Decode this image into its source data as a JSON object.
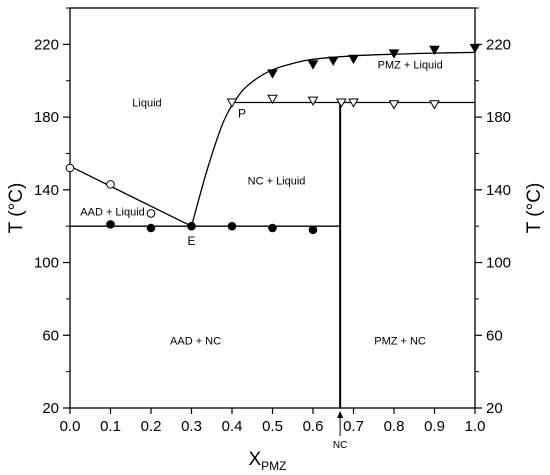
{
  "chart_data": {
    "type": "scatter",
    "xlabel": "X",
    "xlabel_sub": "PMZ",
    "ylabel_left": "T (°C)",
    "ylabel_right": "T (°C)",
    "xlim": [
      0.0,
      1.0
    ],
    "ylim": [
      20,
      240
    ],
    "x_ticks": [
      {
        "value": 0.0,
        "label": "0.0"
      },
      {
        "value": 0.1,
        "label": "0.1"
      },
      {
        "value": 0.2,
        "label": "0.2"
      },
      {
        "value": 0.3,
        "label": "0.3"
      },
      {
        "value": 0.4,
        "label": "0.4"
      },
      {
        "value": 0.5,
        "label": "0.5"
      },
      {
        "value": 0.6,
        "label": "0.6"
      },
      {
        "value": 0.7,
        "label": "0.7"
      },
      {
        "value": 0.8,
        "label": "0.8"
      },
      {
        "value": 0.9,
        "label": "0.9"
      },
      {
        "value": 1.0,
        "label": "1.0"
      }
    ],
    "y_ticks": [
      {
        "value": 20,
        "label": "20"
      },
      {
        "value": 60,
        "label": "60"
      },
      {
        "value": 100,
        "label": "100"
      },
      {
        "value": 140,
        "label": "140"
      },
      {
        "value": 180,
        "label": "180"
      },
      {
        "value": 220,
        "label": "220"
      }
    ],
    "y_minor_ticks": [
      40,
      80,
      120,
      160,
      200,
      240
    ],
    "grid": false,
    "series": [
      {
        "marker": "open-circle",
        "x": [
          0.0,
          0.1,
          0.2
        ],
        "y": [
          152,
          143,
          127
        ]
      },
      {
        "marker": "filled-circle",
        "x": [
          0.1,
          0.2,
          0.3,
          0.4,
          0.5,
          0.6
        ],
        "y": [
          121,
          119,
          120,
          120,
          119,
          118
        ]
      },
      {
        "marker": "open-triangle-down",
        "x": [
          0.4,
          0.5,
          0.6,
          0.67,
          0.7,
          0.8,
          0.9
        ],
        "y": [
          188,
          190,
          189,
          188,
          188,
          187,
          187
        ]
      },
      {
        "marker": "filled-triangle-down",
        "x": [
          0.5,
          0.6,
          0.65,
          0.7,
          0.8,
          0.9,
          1.0
        ],
        "y": [
          204,
          209,
          211,
          212,
          215,
          217,
          218
        ]
      }
    ],
    "lines": {
      "liquidus_aad": {
        "x": [
          0.0,
          0.3
        ],
        "y": [
          153,
          120
        ]
      },
      "eutectic": {
        "x": [
          0.0,
          0.667
        ],
        "y": [
          120,
          120
        ]
      },
      "peritectic": {
        "x": [
          0.4,
          1.0
        ],
        "y": [
          188,
          188
        ]
      },
      "nc_vertical": {
        "x": [
          0.667,
          0.667
        ],
        "y": [
          20,
          188
        ]
      },
      "liquidus_pmz": {
        "x": [
          0.3,
          0.34,
          0.38,
          0.42,
          0.46,
          0.5,
          0.55,
          0.6,
          0.7,
          0.8,
          0.9,
          1.0
        ],
        "y": [
          120,
          152,
          178,
          193,
          201,
          206,
          209.5,
          211.8,
          213.7,
          214.6,
          215.2,
          215.6
        ]
      }
    },
    "region_labels": [
      {
        "text": "Liquid",
        "x": 0.19,
        "y": 188
      },
      {
        "text": "PMZ + Liquid",
        "x": 0.84,
        "y": 209
      },
      {
        "text": "NC + Liquid",
        "x": 0.51,
        "y": 145
      },
      {
        "text": "AAD + Liquid",
        "x": 0.105,
        "y": 128
      },
      {
        "text": "AAD + NC",
        "x": 0.31,
        "y": 57
      },
      {
        "text": "PMZ + NC",
        "x": 0.815,
        "y": 57
      }
    ],
    "point_labels": [
      {
        "text": "E",
        "x": 0.3,
        "y": 120
      },
      {
        "text": "P",
        "x": 0.41,
        "y": 188
      }
    ],
    "nc_marker": {
      "text": "NC",
      "x": 0.667
    }
  }
}
